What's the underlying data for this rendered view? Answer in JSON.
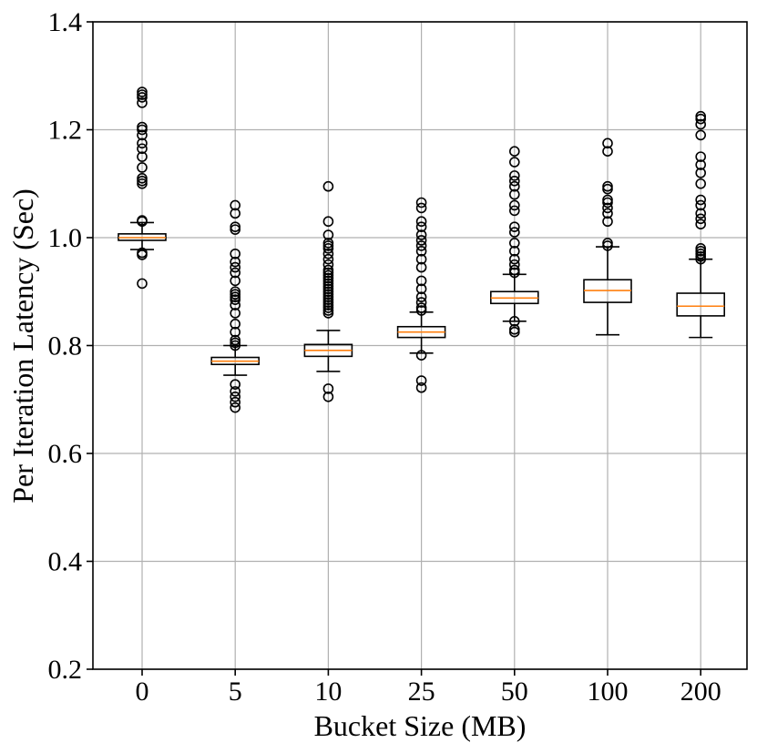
{
  "chart_data": {
    "type": "box",
    "title": "",
    "xlabel": "Bucket Size (MB)",
    "ylabel": "Per Iteration Latency (Sec)",
    "ylim": [
      0.2,
      1.4
    ],
    "yticks": [
      "0.2",
      "0.4",
      "0.6",
      "0.8",
      "1.0",
      "1.2",
      "1.4"
    ],
    "grid": true,
    "categories": [
      "0",
      "5",
      "10",
      "25",
      "50",
      "100",
      "200"
    ],
    "boxes": [
      {
        "category": "0",
        "q1": 0.995,
        "median": 1.0,
        "q3": 1.007,
        "whisker_low": 0.978,
        "whisker_high": 1.028,
        "fliers": [
          0.915,
          0.968,
          0.972,
          1.03,
          1.032,
          1.1,
          1.105,
          1.11,
          1.13,
          1.15,
          1.165,
          1.175,
          1.19,
          1.2,
          1.205,
          1.25,
          1.26,
          1.265,
          1.27
        ]
      },
      {
        "category": "5",
        "q1": 0.765,
        "median": 0.771,
        "q3": 0.778,
        "whisker_low": 0.745,
        "whisker_high": 0.8,
        "fliers": [
          0.685,
          0.695,
          0.705,
          0.715,
          0.728,
          0.8,
          0.805,
          0.81,
          0.825,
          0.84,
          0.86,
          0.875,
          0.885,
          0.89,
          0.895,
          0.9,
          0.92,
          0.935,
          0.945,
          0.955,
          0.97,
          1.015,
          1.02,
          1.045,
          1.06
        ]
      },
      {
        "category": "10",
        "q1": 0.78,
        "median": 0.791,
        "q3": 0.802,
        "whisker_low": 0.752,
        "whisker_high": 0.828,
        "fliers": [
          0.705,
          0.72,
          0.86,
          0.865,
          0.87,
          0.875,
          0.88,
          0.885,
          0.89,
          0.895,
          0.9,
          0.905,
          0.91,
          0.915,
          0.92,
          0.925,
          0.93,
          0.935,
          0.94,
          0.95,
          0.96,
          0.97,
          0.98,
          0.985,
          0.99,
          1.005,
          1.03,
          1.095
        ]
      },
      {
        "category": "25",
        "q1": 0.815,
        "median": 0.825,
        "q3": 0.835,
        "whisker_low": 0.786,
        "whisker_high": 0.862,
        "fliers": [
          0.722,
          0.735,
          0.782,
          0.865,
          0.87,
          0.88,
          0.89,
          0.905,
          0.92,
          0.945,
          0.96,
          0.975,
          0.985,
          0.995,
          1.005,
          1.02,
          1.03,
          1.055,
          1.065
        ]
      },
      {
        "category": "50",
        "q1": 0.878,
        "median": 0.888,
        "q3": 0.9,
        "whisker_low": 0.845,
        "whisker_high": 0.932,
        "fliers": [
          0.825,
          0.83,
          0.845,
          0.935,
          0.94,
          0.95,
          0.96,
          0.975,
          0.99,
          1.01,
          1.02,
          1.05,
          1.06,
          1.08,
          1.095,
          1.105,
          1.115,
          1.14,
          1.16
        ]
      },
      {
        "category": "100",
        "q1": 0.88,
        "median": 0.902,
        "q3": 0.922,
        "whisker_low": 0.82,
        "whisker_high": 0.983,
        "fliers": [
          0.985,
          0.99,
          1.03,
          1.045,
          1.055,
          1.065,
          1.07,
          1.09,
          1.095,
          1.16,
          1.175
        ]
      },
      {
        "category": "200",
        "q1": 0.855,
        "median": 0.873,
        "q3": 0.897,
        "whisker_low": 0.815,
        "whisker_high": 0.96,
        "fliers": [
          0.96,
          0.965,
          0.97,
          0.975,
          0.98,
          1.025,
          1.035,
          1.045,
          1.06,
          1.07,
          1.1,
          1.12,
          1.135,
          1.15,
          1.19,
          1.21,
          1.22,
          1.225
        ]
      }
    ]
  }
}
